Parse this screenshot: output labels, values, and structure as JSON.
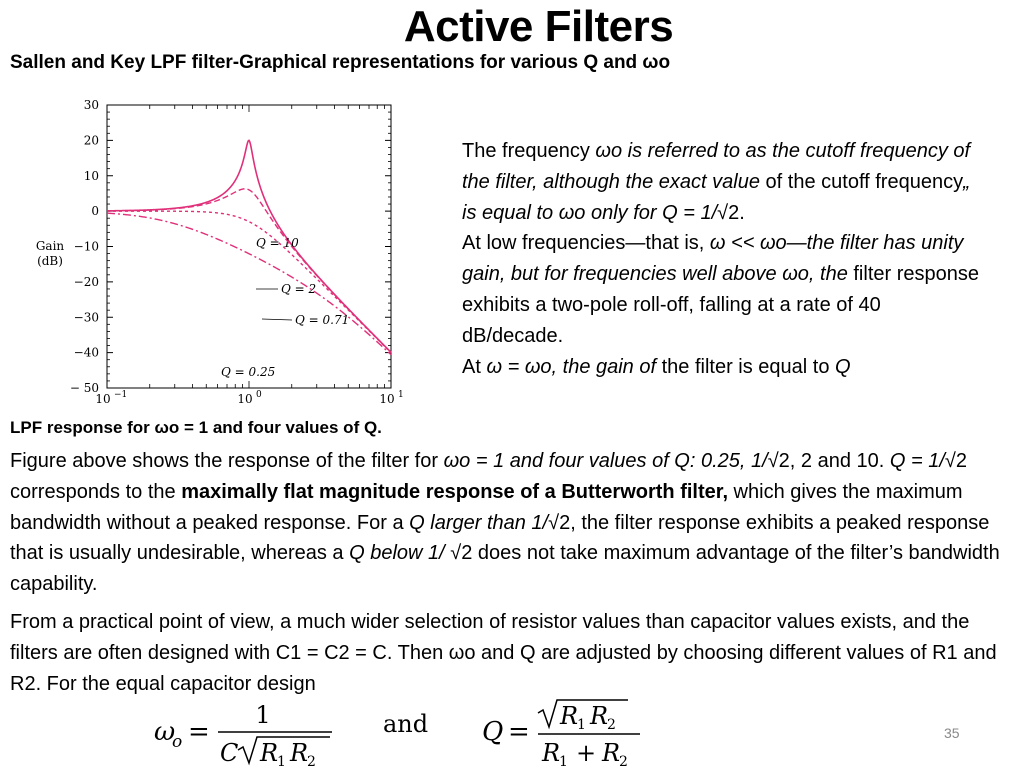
{
  "title": "Active Filters",
  "subtitle": "Sallen and Key LPF  filter-Graphical representations for various Q  and ωo",
  "chart_data": {
    "type": "line",
    "ylabel": [
      "Gain",
      "(dB)"
    ],
    "x_scale": "log",
    "xlim": [
      0.1,
      10
    ],
    "ylim": [
      -50,
      30
    ],
    "x_ticks": [
      0.1,
      1,
      10
    ],
    "x_tick_labels": [
      "10",
      "10",
      "10"
    ],
    "x_tick_exponents": [
      "−1",
      "0",
      "1"
    ],
    "y_ticks": [
      30,
      20,
      10,
      0,
      -10,
      -20,
      -30,
      -40,
      -50
    ],
    "y_tick_labels": [
      "30",
      "20",
      "10",
      "0",
      "−10",
      "−20",
      "−30",
      "−40",
      "− 50"
    ],
    "series": [
      {
        "name": "Q = 10",
        "Q": 10,
        "dash": "none",
        "label_dx": 8,
        "label_dy": 20,
        "label_at": 1.0
      },
      {
        "name": "Q = 2",
        "Q": 2,
        "dash": "6,3",
        "label_dx": 0,
        "label_dy": 0,
        "label_at": 1.15
      },
      {
        "name": "Q = 0.71",
        "Q": 0.71,
        "dash": "3,3",
        "label_dx": 0,
        "label_dy": 0,
        "label_at": 1.1
      },
      {
        "name": "Q = 0.25",
        "Q": 0.25,
        "dash": "8,3,2,3",
        "label_dx": 0,
        "label_dy": 0,
        "label_at": 0.6
      }
    ],
    "line_color": "#e0307a"
  },
  "side_text": [
    [
      {
        "t": "The frequency "
      },
      {
        "t": "ωo is referred to as the cutoff frequency of the filter, although the exact value ",
        "i": true
      },
      {
        "t": "of the cutoff frequency"
      },
      {
        "t": "„ is equal to ωo only for Q = 1/",
        "i": true
      },
      {
        "t": "√2."
      }
    ],
    [
      {
        "t": "At low frequencies—that is, "
      },
      {
        "t": "ω << ωo—the filter has unity gain, but for frequencies well above ωo, the ",
        "i": true
      },
      {
        "t": "filter response exhibits a two-pole roll-off, falling at a rate of 40 dB/decade."
      }
    ],
    [
      {
        "t": "At "
      },
      {
        "t": "ω = ωo, the gain of ",
        "i": true
      },
      {
        "t": "the filter is equal to "
      },
      {
        "t": "Q",
        "i": true
      }
    ]
  ],
  "caption": "LPF response for ωo = 1 and four values of Q.",
  "para1": [
    {
      "t": "Figure above shows the response of the filter for "
    },
    {
      "t": "ωo = 1 and four values of Q: 0.25, 1/",
      "i": true
    },
    {
      "t": "√2, 2 and 10.  "
    },
    {
      "t": "Q = 1/",
      "i": true
    },
    {
      "t": "√2 corresponds to the "
    },
    {
      "t": "maximally flat magnitude response of a Butterworth filter,",
      "b": true
    },
    {
      "t": " which gives the maximum bandwidth without a peaked response. For a "
    },
    {
      "t": "Q larger than 1/",
      "i": true
    },
    {
      "t": "√2, the filter response exhibits a peaked response that is usually undesirable, whereas a "
    },
    {
      "t": "Q below 1/ ",
      "i": true
    },
    {
      "t": "√2 does not take maximum advantage of the filter’s bandwidth capability."
    }
  ],
  "para2": "From a practical point of view, a much wider selection of resistor values than capacitor values exists, and the filters are often designed with C1 = C2 = C. Then ωo and Q are adjusted by choosing different values of R1 and R2. For the equal capacitor design",
  "formula": {
    "w_lhs": "ω",
    "w_sub": "o",
    "eq": "=",
    "w_num": "1",
    "w_den_c": "C",
    "r1": "R",
    "r1_sub": "1",
    "r2": "R",
    "r2_sub": "2",
    "and": "and",
    "q_lhs": "Q",
    "plus": "+"
  },
  "page_number": "35"
}
